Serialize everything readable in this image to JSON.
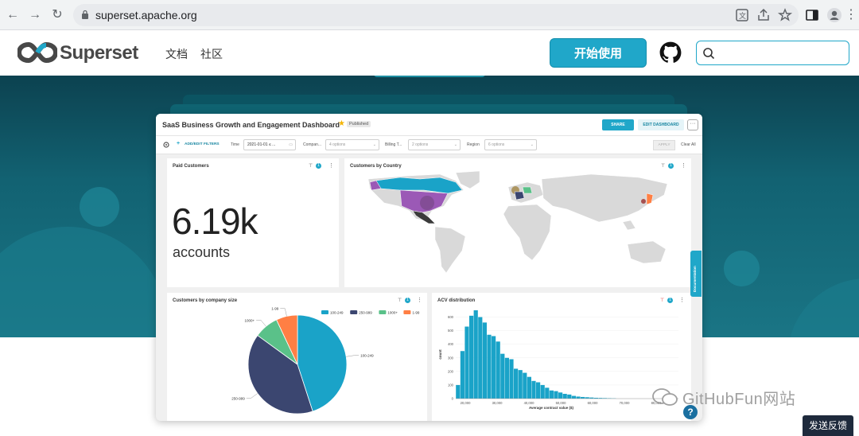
{
  "browser": {
    "url": "superset.apache.org"
  },
  "site": {
    "brand": "Superset",
    "nav": [
      {
        "label": "文档"
      },
      {
        "label": "社区"
      }
    ],
    "start_button": "开始使用",
    "search": {
      "placeholder": "",
      "value": ""
    },
    "brand_color": "#20a7c9"
  },
  "dashboard": {
    "title": "SaaS Business Growth and Engagement Dashboard",
    "status": "Published",
    "share_label": "SHARE",
    "edit_label": "EDIT DASHBOARD",
    "more_label": "···",
    "filters": {
      "add_label": "ADD/EDIT FILTERS",
      "items": [
        {
          "label": "Time",
          "value": "2021-01-01 ≤ ..."
        },
        {
          "label": "Compan...",
          "value": "4 options"
        },
        {
          "label": "Billing T...",
          "value": "2 options"
        },
        {
          "label": "Region",
          "value": "6 options"
        }
      ],
      "apply_label": "APPLY",
      "clear_label": "Clear All"
    },
    "paid_customers": {
      "title": "Paid Customers",
      "value": "6.19k",
      "unit": "accounts",
      "filter_count": "1"
    },
    "customers_by_country": {
      "title": "Customers by Country",
      "filter_count": "1"
    },
    "documentation_tab": "Documentation"
  },
  "chart_data": [
    {
      "type": "pie",
      "title": "Customers by company size",
      "filter_count": "1",
      "categories": [
        "100-249",
        "250-999",
        "1000+",
        "1-99"
      ],
      "values": [
        45,
        40,
        8,
        7
      ],
      "colors": [
        "#1aa3c8",
        "#3b4670",
        "#5ac189",
        "#ff7f44"
      ]
    },
    {
      "type": "bar",
      "title": "ACV distribution",
      "filter_count": "1",
      "xlabel": "Average contract value ($)",
      "ylabel": "count",
      "xlim": [
        17000,
        87000
      ],
      "ylim": [
        0,
        650
      ],
      "yticks": [
        0,
        100,
        200,
        300,
        400,
        500,
        600
      ],
      "xticks": [
        20000,
        30000,
        40000,
        50000,
        60000,
        70000,
        80000
      ],
      "xtick_labels": [
        "20,000",
        "30,000",
        "40,000",
        "50,000",
        "60,000",
        "70,000",
        "80,000"
      ],
      "bin_width": 1400,
      "bin_start": 17000,
      "values": [
        100,
        350,
        530,
        610,
        650,
        600,
        560,
        470,
        460,
        420,
        330,
        300,
        290,
        220,
        210,
        190,
        160,
        130,
        120,
        100,
        80,
        60,
        55,
        45,
        35,
        30,
        20,
        15,
        12,
        10,
        8,
        6,
        5,
        4,
        3,
        2
      ],
      "color": "#1aa3c8"
    }
  ],
  "watermark": "GitHubFun网站",
  "feedback": "发送反馈",
  "help_icon": "?"
}
